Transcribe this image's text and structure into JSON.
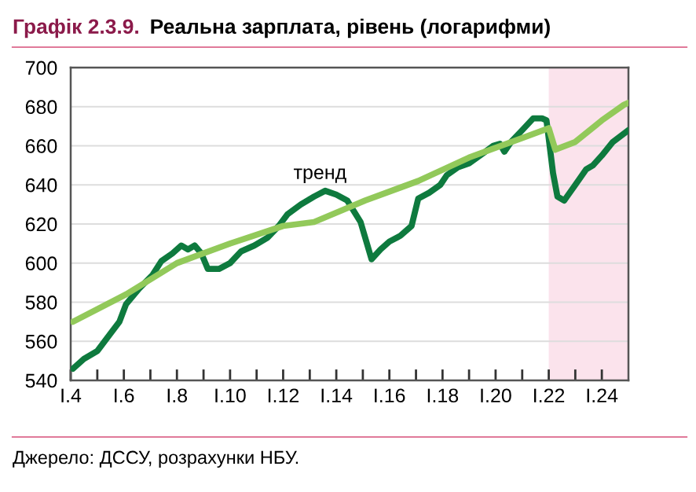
{
  "chart_data": {
    "type": "line",
    "title": "Графік 2.3.9. Реальна зарплата, рівень (логарифми)",
    "annotations": [
      "Джерело: ДССУ, розрахунки НБУ."
    ],
    "xlim": [
      "2004-01",
      "2025-01"
    ],
    "ylim": [
      540,
      700
    ],
    "xticks": [
      {
        "value": "2004-01",
        "label": "I.4"
      },
      {
        "value": "2005-01",
        "label": null
      },
      {
        "value": "2006-01",
        "label": "I.6"
      },
      {
        "value": "2007-01",
        "label": null
      },
      {
        "value": "2008-01",
        "label": "I.8"
      },
      {
        "value": "2009-01",
        "label": null
      },
      {
        "value": "2010-01",
        "label": "I.10"
      },
      {
        "value": "2011-01",
        "label": null
      },
      {
        "value": "2012-01",
        "label": "I.12"
      },
      {
        "value": "2013-01",
        "label": null
      },
      {
        "value": "2014-01",
        "label": "I.14"
      },
      {
        "value": "2015-01",
        "label": null
      },
      {
        "value": "2016-01",
        "label": "I.16"
      },
      {
        "value": "2017-01",
        "label": null
      },
      {
        "value": "2018-01",
        "label": "I.18"
      },
      {
        "value": "2019-01",
        "label": null
      },
      {
        "value": "2020-01",
        "label": "I.20"
      },
      {
        "value": "2021-01",
        "label": null
      },
      {
        "value": "2022-01",
        "label": "I.22"
      },
      {
        "value": "2023-01",
        "label": null
      },
      {
        "value": "2024-01",
        "label": "I.24"
      }
    ],
    "yticks": [
      540,
      560,
      580,
      600,
      620,
      640,
      660,
      680,
      700
    ],
    "grid": "y",
    "legend": false,
    "bands": [
      {
        "axis": "x",
        "from": "2022-01",
        "to": "2025-01",
        "color": "#fbe3ec"
      }
    ],
    "series": [
      {
        "color": "#0e7a3e",
        "x": [
          "2004-02",
          "2004-07",
          "2005-01",
          "2005-07",
          "2005-11",
          "2006-02",
          "2006-08",
          "2007-02",
          "2007-06",
          "2007-11",
          "2008-03",
          "2008-06",
          "2008-09",
          "2008-12",
          "2009-03",
          "2009-08",
          "2010-01",
          "2010-06",
          "2010-12",
          "2011-06",
          "2011-11",
          "2012-03",
          "2012-09",
          "2013-03",
          "2013-08",
          "2014-01",
          "2014-06",
          "2014-12",
          "2015-05",
          "2015-09",
          "2016-01",
          "2016-06",
          "2016-11",
          "2017-02",
          "2017-07",
          "2017-12",
          "2018-03",
          "2018-08",
          "2019-01",
          "2019-06",
          "2019-12",
          "2020-03",
          "2020-05",
          "2020-08",
          "2021-01",
          "2021-06",
          "2021-10",
          "2021-12",
          "2022-03",
          "2022-05",
          "2022-08",
          "2023-01",
          "2023-06",
          "2023-09",
          "2024-01",
          "2024-06",
          "2025-01"
        ],
        "values": [
          546,
          551,
          555,
          564,
          570,
          579,
          587,
          594,
          601,
          605,
          609,
          607,
          609,
          605,
          597,
          597,
          600,
          606,
          609,
          613,
          619,
          625,
          630,
          634,
          637,
          635,
          632,
          621,
          602,
          607,
          611,
          614,
          619,
          633,
          636,
          640,
          645,
          649,
          651,
          655,
          660,
          661,
          657,
          662,
          668,
          674,
          674,
          673,
          646,
          634,
          632,
          640,
          648,
          650,
          655,
          662,
          668
        ]
      },
      {
        "name": "тренд",
        "color": "#92c95a",
        "x": [
          "2004-02",
          "2006-02",
          "2008-01",
          "2010-01",
          "2012-01",
          "2013-03",
          "2015-02",
          "2017-02",
          "2019-01",
          "2021-01",
          "2022-01",
          "2022-04",
          "2023-01",
          "2024-01",
          "2024-11",
          "2025-01"
        ],
        "values": [
          570,
          584,
          600,
          610,
          619,
          621,
          632,
          642,
          654,
          664,
          669,
          658,
          662,
          673,
          681,
          682
        ]
      }
    ]
  }
}
